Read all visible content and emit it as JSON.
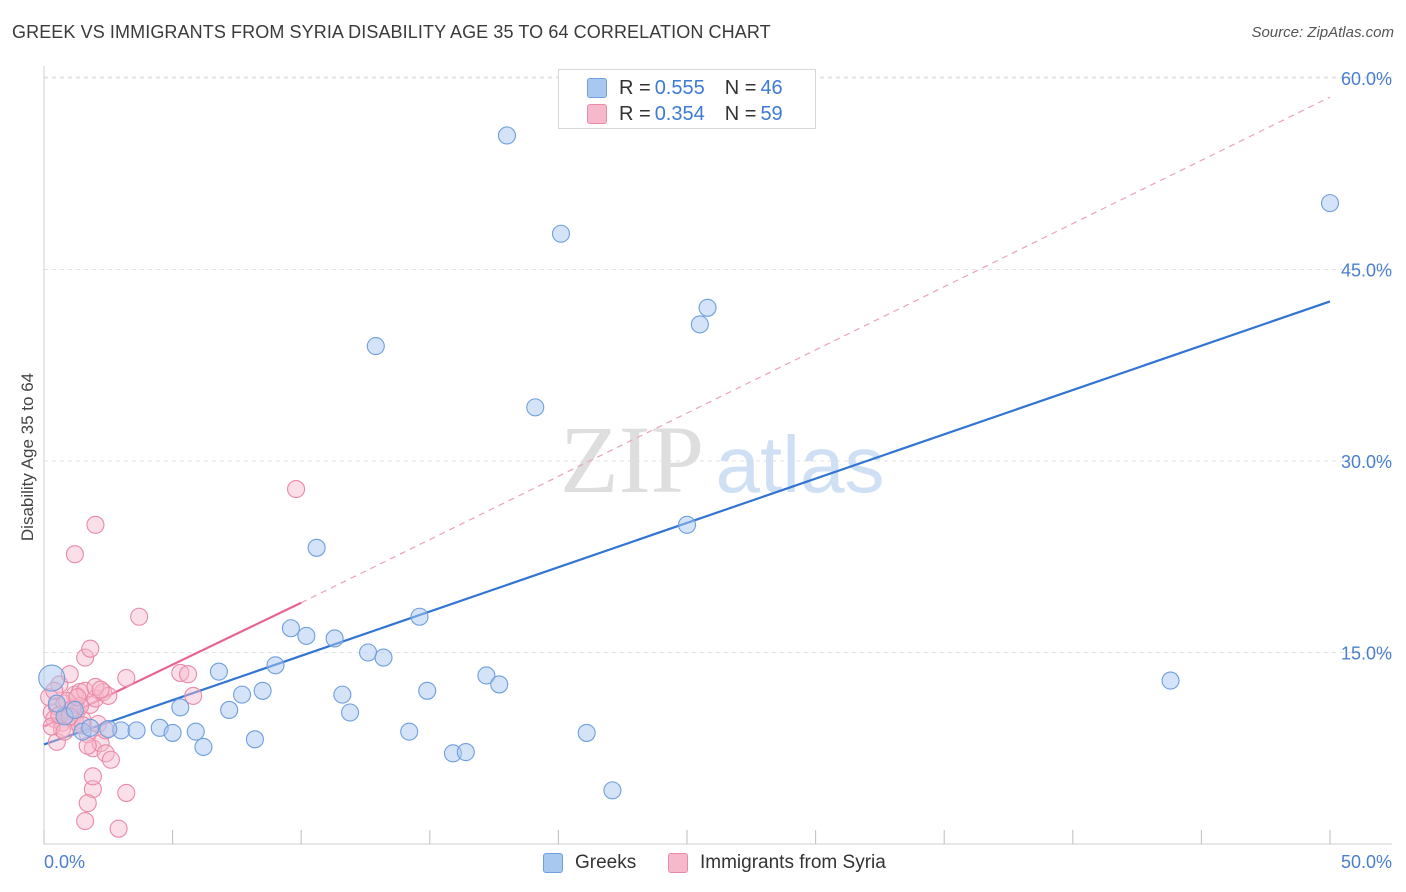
{
  "header": {
    "title": "GREEK VS IMMIGRANTS FROM SYRIA DISABILITY AGE 35 TO 64 CORRELATION CHART",
    "source": "Source: ZipAtlas.com"
  },
  "watermark": {
    "zip": "ZIP",
    "atlas": "atlas"
  },
  "legend_top": {
    "rows": [
      {
        "r_label": "R = ",
        "r_value": "0.555",
        "n_label": "N = ",
        "n_value": "46",
        "color": "#a9c8f0"
      },
      {
        "r_label": "R = ",
        "r_value": "0.354",
        "n_label": "N = ",
        "n_value": "59",
        "color": "#f6b8cb"
      }
    ]
  },
  "legend_bottom": [
    {
      "label": "Greeks",
      "color": "#a9c8f0"
    },
    {
      "label": "Immigrants from Syria",
      "color": "#f6b8cb"
    }
  ],
  "colors": {
    "blue_fill": "#a9c8f0",
    "blue_stroke": "#6f9fdc",
    "blue_line": "#3174d3",
    "pink_fill": "#f6b8cb",
    "pink_stroke": "#e98aa6",
    "pink_line": "#e8648f",
    "grid": "#e3e3e3",
    "tick_text": "#4a7fd0"
  },
  "chart_data": {
    "type": "scatter",
    "title": "GREEK VS IMMIGRANTS FROM SYRIA DISABILITY AGE 35 TO 64 CORRELATION CHART",
    "xlabel": "",
    "ylabel": "Disability Age 35 to 64",
    "xlim": [
      0,
      50
    ],
    "ylim": [
      0,
      60
    ],
    "x_tick_labels": [
      "0.0%",
      "50.0%"
    ],
    "y_tick_values": [
      15,
      30,
      45,
      60
    ],
    "y_tick_labels": [
      "15.0%",
      "30.0%",
      "45.0%",
      "60.0%"
    ],
    "series": [
      {
        "name": "Greeks",
        "r": 0.555,
        "n": 46,
        "points": [
          [
            0.3,
            13.0
          ],
          [
            1.5,
            8.8
          ],
          [
            1.8,
            9.1
          ],
          [
            3.0,
            8.9
          ],
          [
            3.6,
            8.9
          ],
          [
            4.5,
            9.1
          ],
          [
            5.0,
            8.7
          ],
          [
            5.3,
            10.7
          ],
          [
            5.9,
            8.8
          ],
          [
            6.2,
            7.6
          ],
          [
            6.8,
            13.5
          ],
          [
            7.2,
            10.5
          ],
          [
            7.7,
            11.7
          ],
          [
            8.2,
            8.2
          ],
          [
            8.5,
            12.0
          ],
          [
            9.0,
            14.0
          ],
          [
            9.6,
            16.9
          ],
          [
            10.2,
            16.3
          ],
          [
            10.6,
            23.2
          ],
          [
            11.3,
            16.1
          ],
          [
            11.6,
            11.7
          ],
          [
            11.9,
            10.3
          ],
          [
            12.6,
            15.0
          ],
          [
            12.9,
            39.0
          ],
          [
            13.2,
            14.6
          ],
          [
            14.2,
            8.8
          ],
          [
            14.6,
            17.8
          ],
          [
            14.9,
            12.0
          ],
          [
            15.9,
            7.1
          ],
          [
            16.4,
            7.2
          ],
          [
            17.2,
            13.2
          ],
          [
            17.7,
            12.5
          ],
          [
            18.0,
            55.5
          ],
          [
            19.1,
            34.2
          ],
          [
            20.1,
            47.8
          ],
          [
            21.1,
            8.7
          ],
          [
            22.1,
            4.2
          ],
          [
            25.0,
            25.0
          ],
          [
            25.5,
            40.7
          ],
          [
            25.8,
            42.0
          ],
          [
            43.8,
            12.8
          ],
          [
            50.0,
            50.2
          ],
          [
            0.8,
            10.0
          ],
          [
            1.2,
            10.5
          ],
          [
            2.5,
            9.0
          ],
          [
            0.5,
            11.0
          ]
        ],
        "trend": {
          "x": [
            0,
            50
          ],
          "y": [
            7.8,
            42.5
          ]
        }
      },
      {
        "name": "Immigrants from Syria",
        "r": 0.354,
        "n": 59,
        "points": [
          [
            0.2,
            11.5
          ],
          [
            0.3,
            10.3
          ],
          [
            0.4,
            9.8
          ],
          [
            0.5,
            10.8
          ],
          [
            0.6,
            12.5
          ],
          [
            0.7,
            9.5
          ],
          [
            0.8,
            11.0
          ],
          [
            0.9,
            10.1
          ],
          [
            1.0,
            13.3
          ],
          [
            1.1,
            9.9
          ],
          [
            1.2,
            11.7
          ],
          [
            1.3,
            10.5
          ],
          [
            1.4,
            11.9
          ],
          [
            1.5,
            9.7
          ],
          [
            1.6,
            12.0
          ],
          [
            1.7,
            8.6
          ],
          [
            1.8,
            10.9
          ],
          [
            1.9,
            7.5
          ],
          [
            2.0,
            11.4
          ],
          [
            2.1,
            9.4
          ],
          [
            2.2,
            7.9
          ],
          [
            2.3,
            11.9
          ],
          [
            2.4,
            7.1
          ],
          [
            2.5,
            11.6
          ],
          [
            2.6,
            6.6
          ],
          [
            0.5,
            8.0
          ],
          [
            0.7,
            9.0
          ],
          [
            1.0,
            10.4
          ],
          [
            1.2,
            9.6
          ],
          [
            1.4,
            10.8
          ],
          [
            1.6,
            14.6
          ],
          [
            1.8,
            15.3
          ],
          [
            2.0,
            12.3
          ],
          [
            1.9,
            4.3
          ],
          [
            1.9,
            5.3
          ],
          [
            1.7,
            3.2
          ],
          [
            1.6,
            1.8
          ],
          [
            2.9,
            1.2
          ],
          [
            3.2,
            4.0
          ],
          [
            3.2,
            13.0
          ],
          [
            3.7,
            17.8
          ],
          [
            2.0,
            25.0
          ],
          [
            1.2,
            22.7
          ],
          [
            5.3,
            13.4
          ],
          [
            5.6,
            13.3
          ],
          [
            5.8,
            11.6
          ],
          [
            9.8,
            27.8
          ],
          [
            0.3,
            9.2
          ],
          [
            0.4,
            12.0
          ],
          [
            0.6,
            10.1
          ],
          [
            0.8,
            8.8
          ],
          [
            0.9,
            11.2
          ],
          [
            1.1,
            10.6
          ],
          [
            1.3,
            11.5
          ],
          [
            1.5,
            9.3
          ],
          [
            1.7,
            7.7
          ],
          [
            2.2,
            12.1
          ],
          [
            2.4,
            8.9
          ],
          [
            1.0,
            10.0
          ]
        ],
        "trend_solid": {
          "x": [
            0,
            10
          ],
          "y": [
            9.2,
            18.9
          ]
        },
        "trend_dashed": {
          "x": [
            10,
            50
          ],
          "y": [
            18.9,
            58.5
          ]
        }
      }
    ]
  }
}
